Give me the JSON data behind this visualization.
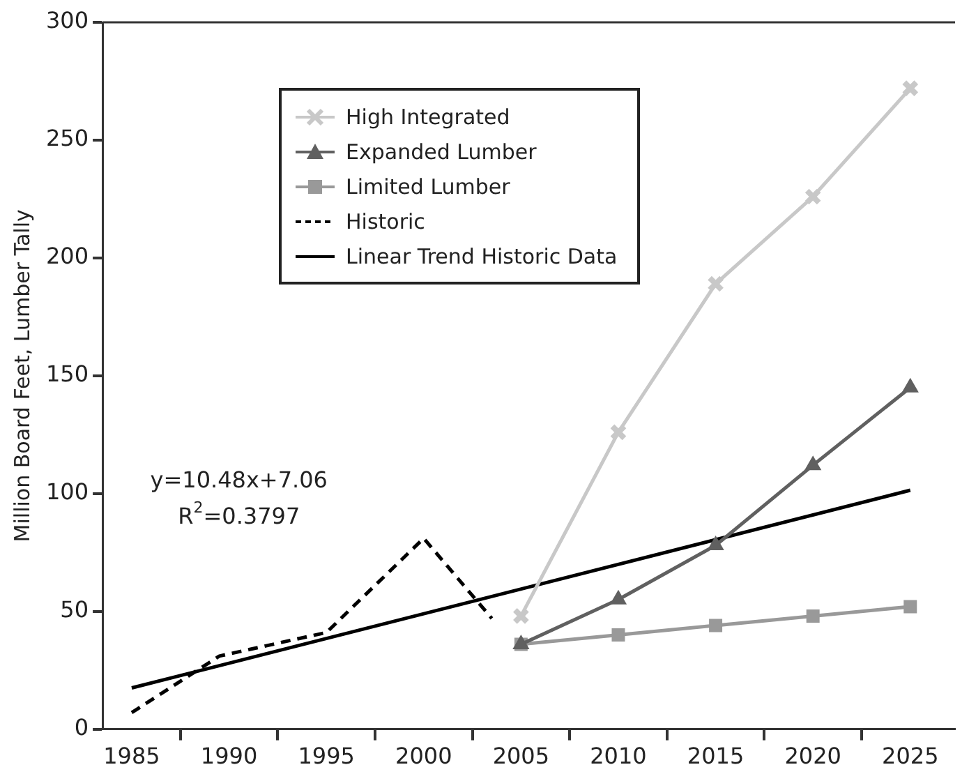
{
  "chart_data": {
    "type": "line",
    "ylabel": "Million Board Feet, Lumber Tally",
    "xlim": [
      1983.5,
      2027.3
    ],
    "xticks": [
      1985,
      {
        "value": 1987.5,
        "label": null
      },
      1990,
      {
        "value": 1992.5,
        "label": null
      },
      1995,
      {
        "value": 1997.5,
        "label": null
      },
      2000,
      {
        "value": 2002.5,
        "label": null
      },
      2005,
      {
        "value": 2007.5,
        "label": null
      },
      2010,
      {
        "value": 2012.5,
        "label": null
      },
      2015,
      {
        "value": 2017.5,
        "label": null
      },
      2020,
      {
        "value": 2022.5,
        "label": null
      },
      2025
    ],
    "ylim": [
      0,
      300
    ],
    "yticks": [
      0,
      50,
      100,
      150,
      200,
      250,
      300
    ],
    "grid": false,
    "legend": "top left",
    "series": [
      {
        "name": "High Integrated",
        "color": "#c8c8c8",
        "marker": "cross",
        "x": [
          2005,
          2010,
          2015,
          2020,
          2025
        ],
        "values": [
          48,
          126,
          189,
          226,
          272
        ]
      },
      {
        "name": "Expanded Lumber",
        "color": "#606060",
        "marker": "triangle",
        "x": [
          2005,
          2010,
          2015,
          2020,
          2025
        ],
        "values": [
          36,
          55,
          78,
          112,
          145
        ]
      },
      {
        "name": "Limited Lumber",
        "color": "#999999",
        "marker": "square",
        "x": [
          2005,
          2010,
          2015,
          2020,
          2025
        ],
        "values": [
          36,
          40,
          44,
          48,
          52
        ]
      },
      {
        "name": "Historic",
        "color": "#000000",
        "marker": "none",
        "line_style": "dashed",
        "x": [
          1985,
          1989.5,
          1995,
          2000,
          2003.5
        ],
        "values": [
          7,
          31,
          41,
          81,
          47
        ]
      },
      {
        "name": "Linear Trend Historic Data",
        "color": "#000000",
        "marker": "none",
        "line_style": "solid",
        "x": [
          1985,
          2025
        ],
        "values": [
          17.5,
          101.4
        ]
      }
    ],
    "annotations": [
      "y=10.48x+7.06",
      "R$^{2}$=0.3797"
    ]
  }
}
